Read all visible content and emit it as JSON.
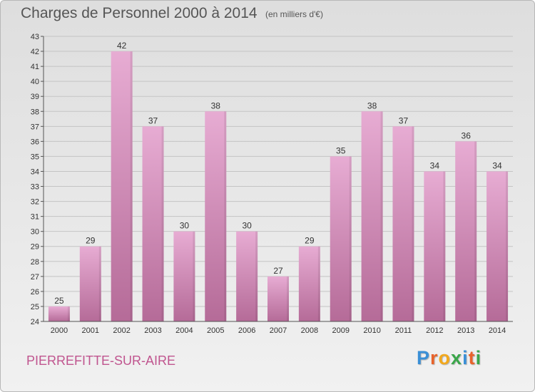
{
  "header": {
    "title": "Charges de Personnel 2000 à 2014",
    "subtitle": "(en milliers d'€)"
  },
  "footer": {
    "commune": "PIERREFITTE-SUR-AIRE",
    "logo_letters": [
      "P",
      "r",
      "o",
      "x",
      "i",
      "t",
      "i"
    ],
    "logo_colors": [
      "#3a8fd6",
      "#e8632b",
      "#f2a81d",
      "#3aa64a",
      "#3a8fd6",
      "#e8632b",
      "#3aa64a"
    ]
  },
  "colors": {
    "bar_top": "#e7acd3",
    "bar_bottom": "#b56b98",
    "grid": "#c4c4c4",
    "axis_text": "#333333"
  },
  "chart_data": {
    "type": "bar",
    "categories": [
      "2000",
      "2001",
      "2002",
      "2003",
      "2004",
      "2005",
      "2006",
      "2007",
      "2008",
      "2009",
      "2010",
      "2011",
      "2012",
      "2013",
      "2014"
    ],
    "values": [
      25,
      29,
      42,
      37,
      30,
      38,
      30,
      27,
      29,
      35,
      38,
      37,
      34,
      36,
      34
    ],
    "ylim": [
      24,
      43
    ],
    "yticks": [
      24,
      25,
      26,
      27,
      28,
      29,
      30,
      31,
      32,
      33,
      34,
      35,
      36,
      37,
      38,
      39,
      40,
      41,
      42,
      43
    ],
    "grid": true,
    "data_labels": true
  }
}
